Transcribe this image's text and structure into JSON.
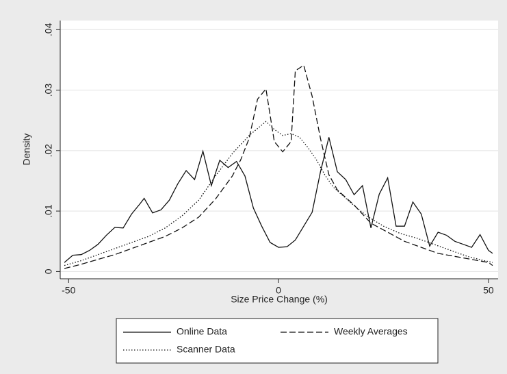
{
  "chart_data": {
    "type": "line",
    "xlabel": "Size Price Change (%)",
    "ylabel": "Density",
    "xlim": [
      -52,
      52.3
    ],
    "ylim": [
      -0.0012,
      0.0415
    ],
    "xticks": [
      -50,
      0,
      50
    ],
    "yticks": [
      0,
      {
        "value": 0.01,
        "label": ".01"
      },
      {
        "value": 0.02,
        "label": ".02"
      },
      {
        "value": 0.03,
        "label": ".03"
      },
      {
        "value": 0.04,
        "label": ".04"
      }
    ],
    "grid": true,
    "legend": "bottom",
    "series": [
      {
        "name": "Online Data",
        "color": "#111111",
        "style": "solid",
        "x": [
          -51,
          -49,
          -47,
          -45,
          -43,
          -41,
          -39,
          -37,
          -35,
          -33,
          -32,
          -30,
          -28,
          -26,
          -24,
          -22,
          -20,
          -18,
          -16,
          -14,
          -12,
          -10,
          -8,
          -6,
          -4,
          -2,
          0,
          2,
          4,
          6,
          8,
          10,
          12,
          14,
          16,
          18,
          20,
          22,
          24,
          26,
          28,
          30,
          32,
          34,
          36,
          38,
          40,
          42,
          44,
          46,
          48,
          50,
          51
        ],
        "values": [
          0.0015,
          0.0027,
          0.0028,
          0.0035,
          0.0045,
          0.006,
          0.0073,
          0.0072,
          0.0095,
          0.0112,
          0.0121,
          0.0097,
          0.0102,
          0.0118,
          0.0145,
          0.0167,
          0.0152,
          0.0199,
          0.0142,
          0.0184,
          0.0172,
          0.0182,
          0.0158,
          0.0105,
          0.0075,
          0.0048,
          0.004,
          0.0041,
          0.0052,
          0.0075,
          0.0098,
          0.0165,
          0.0222,
          0.0165,
          0.0152,
          0.0127,
          0.0142,
          0.0072,
          0.0128,
          0.0155,
          0.0075,
          0.0075,
          0.0115,
          0.0095,
          0.0042,
          0.0065,
          0.006,
          0.005,
          0.0045,
          0.004,
          0.0061,
          0.0035,
          0.003
        ]
      },
      {
        "name": "Weekly Averages",
        "color": "#111111",
        "style": "dashed",
        "x": [
          -51,
          -47,
          -43,
          -39,
          -35,
          -31,
          -27,
          -23,
          -19,
          -15,
          -11,
          -9,
          -7,
          -5,
          -3,
          -1,
          1,
          3,
          4,
          6,
          8,
          10,
          12,
          14,
          18,
          22,
          26,
          30,
          34,
          38,
          42,
          46,
          50,
          51
        ],
        "values": [
          0.0005,
          0.0012,
          0.002,
          0.0028,
          0.0038,
          0.0048,
          0.0058,
          0.0072,
          0.009,
          0.012,
          0.0158,
          0.0185,
          0.022,
          0.0285,
          0.0302,
          0.0215,
          0.0198,
          0.0215,
          0.0332,
          0.0341,
          0.029,
          0.022,
          0.016,
          0.0135,
          0.011,
          0.008,
          0.0065,
          0.005,
          0.004,
          0.003,
          0.0025,
          0.002,
          0.0015,
          0.001
        ]
      },
      {
        "name": "Scanner Data",
        "color": "#111111",
        "style": "dotted",
        "x": [
          -51,
          -47,
          -43,
          -39,
          -35,
          -31,
          -27,
          -23,
          -19,
          -15,
          -11,
          -7,
          -3,
          -1,
          1,
          3,
          5,
          7,
          9,
          11,
          13,
          17,
          21,
          25,
          29,
          33,
          37,
          41,
          45,
          49,
          51
        ],
        "values": [
          0.001,
          0.0018,
          0.0028,
          0.0038,
          0.0048,
          0.0058,
          0.0072,
          0.0092,
          0.0118,
          0.0158,
          0.0195,
          0.0225,
          0.0248,
          0.0235,
          0.0225,
          0.0228,
          0.0222,
          0.0205,
          0.0185,
          0.016,
          0.014,
          0.0115,
          0.0092,
          0.0075,
          0.0063,
          0.0055,
          0.0045,
          0.0035,
          0.0025,
          0.0018,
          0.0015
        ]
      }
    ]
  }
}
